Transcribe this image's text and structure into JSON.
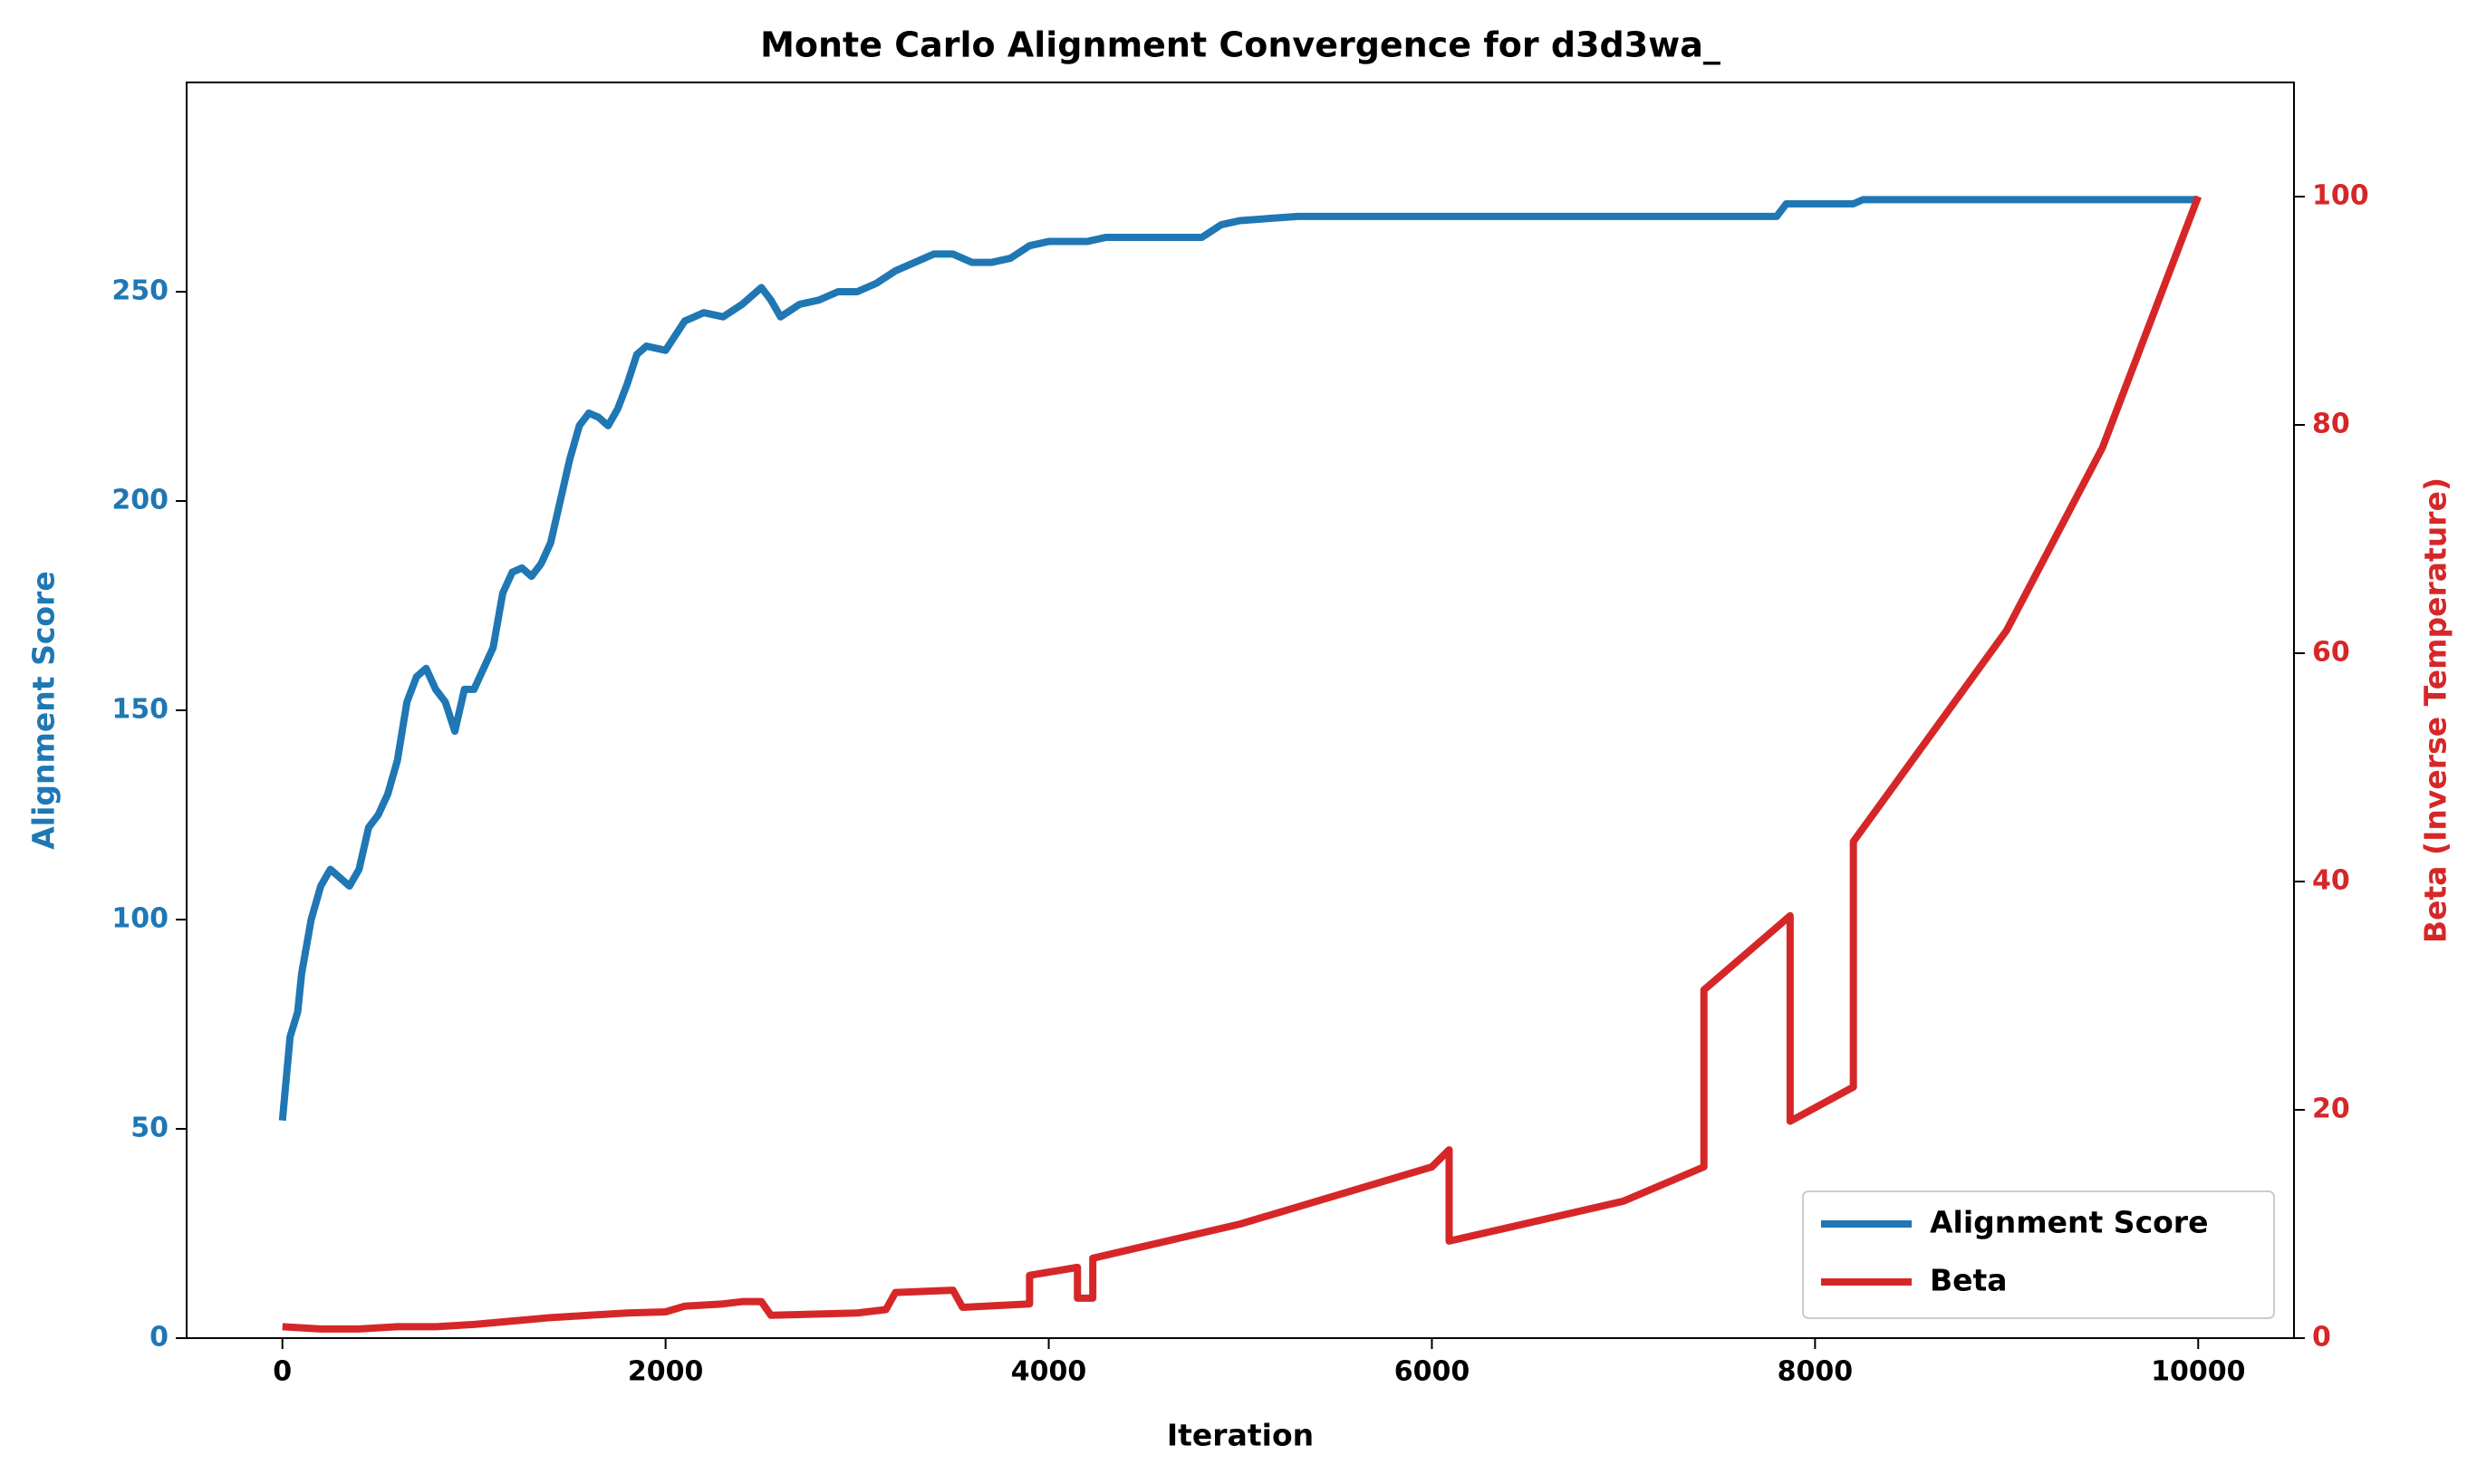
{
  "chart_data": {
    "type": "line",
    "title": "Monte Carlo Alignment Convergence for d3d3wa_",
    "x_label": "Iteration",
    "y_label": "Alignment Score",
    "y2_label": "Beta (Inverse Temperature)",
    "xlim": [
      -500,
      10500
    ],
    "xticks": [
      0,
      2000,
      4000,
      6000,
      8000,
      10000
    ],
    "ylim": [
      0,
      300
    ],
    "yticks": [
      0,
      50,
      100,
      150,
      200,
      250
    ],
    "y2lim": [
      0,
      110
    ],
    "y2ticks": [
      0,
      20,
      40,
      60,
      80,
      100
    ],
    "legend": "lower right",
    "series": [
      {
        "name": "Alignment Score",
        "color": "#1f77b4",
        "x": [
          0,
          20,
          40,
          80,
          100,
          150,
          200,
          250,
          300,
          350,
          400,
          450,
          500,
          550,
          600,
          650,
          700,
          750,
          800,
          850,
          900,
          950,
          1000,
          1050,
          1100,
          1150,
          1200,
          1250,
          1300,
          1350,
          1400,
          1450,
          1500,
          1550,
          1600,
          1650,
          1700,
          1750,
          1800,
          1850,
          1900,
          2000,
          2100,
          2200,
          2300,
          2400,
          2500,
          2550,
          2600,
          2700,
          2800,
          2900,
          3000,
          3100,
          3200,
          3300,
          3400,
          3500,
          3600,
          3700,
          3800,
          3900,
          4000,
          4200,
          4300,
          4800,
          4900,
          5000,
          5300,
          6000,
          6500,
          7000,
          7800,
          7850,
          8200,
          8250,
          8700,
          9000,
          10000
        ],
        "values": [
          52,
          62,
          72,
          78,
          87,
          100,
          108,
          112,
          110,
          108,
          112,
          122,
          125,
          130,
          138,
          152,
          158,
          160,
          155,
          152,
          145,
          155,
          155,
          160,
          165,
          178,
          183,
          184,
          182,
          185,
          190,
          200,
          210,
          218,
          221,
          220,
          218,
          222,
          228,
          235,
          237,
          236,
          243,
          245,
          244,
          247,
          251,
          248,
          244,
          247,
          248,
          250,
          250,
          252,
          255,
          257,
          259,
          259,
          257,
          257,
          258,
          261,
          262,
          262,
          263,
          263,
          266,
          267,
          268,
          268,
          268,
          268,
          268,
          271,
          271,
          272,
          272,
          272,
          272
        ]
      },
      {
        "name": "Beta",
        "color": "#d62728",
        "axis": "y2",
        "x": [
          0,
          200,
          400,
          600,
          800,
          1000,
          1200,
          1400,
          1600,
          1800,
          2000,
          2100,
          2300,
          2400,
          2500,
          2550,
          3000,
          3150,
          3200,
          3500,
          3550,
          3900,
          3900,
          4150,
          4150,
          4230,
          4230,
          5000,
          6000,
          6090,
          6090,
          7000,
          7420,
          7420,
          7870,
          7870,
          8200,
          8200,
          9000,
          9500,
          10000
        ],
        "values": [
          1,
          0.8,
          0.8,
          1,
          1,
          1.2,
          1.5,
          1.8,
          2,
          2.2,
          2.3,
          2.8,
          3,
          3.2,
          3.2,
          2,
          2.2,
          2.5,
          4,
          4.2,
          2.7,
          3,
          5.5,
          6.2,
          3.5,
          3.5,
          7,
          10,
          15,
          16.5,
          8.5,
          12,
          15,
          30.5,
          37,
          19,
          22,
          43.5,
          62,
          78,
          100
        ]
      }
    ]
  }
}
